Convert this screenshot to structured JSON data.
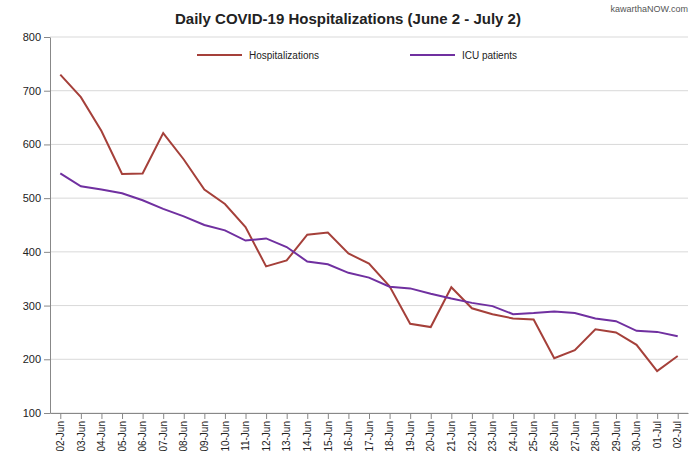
{
  "chart_data": {
    "type": "line",
    "title": "Daily COVID-19 Hospitalizations (June 2 - July 2)",
    "annotations": [
      "kawarthaNOW.com"
    ],
    "categories": [
      "02-Jun",
      "03-Jun",
      "04-Jun",
      "05-Jun",
      "06-Jun",
      "07-Jun",
      "08-Jun",
      "09-Jun",
      "10-Jun",
      "11-Jun",
      "12-Jun",
      "13-Jun",
      "14-Jun",
      "15-Jun",
      "16-Jun",
      "17-Jun",
      "18-Jun",
      "19-Jun",
      "20-Jun",
      "21-Jun",
      "22-Jun",
      "23-Jun",
      "24-Jun",
      "25-Jun",
      "26-Jun",
      "27-Jun",
      "28-Jun",
      "29-Jun",
      "30-Jun",
      "01-Jul",
      "02-Jul"
    ],
    "series": [
      {
        "name": "Hospitalizations",
        "color": "#a5403a",
        "values": [
          730,
          688,
          625,
          545,
          546,
          621,
          572,
          516,
          489,
          446,
          373,
          384,
          432,
          436,
          397,
          378,
          336,
          266,
          260,
          334,
          295,
          284,
          276,
          274,
          202,
          217,
          256,
          250,
          227,
          178,
          206
        ]
      },
      {
        "name": "ICU patients",
        "color": "#7030a0",
        "values": [
          546,
          522,
          516,
          509,
          496,
          480,
          466,
          450,
          440,
          421,
          425,
          409,
          382,
          377,
          361,
          352,
          335,
          332,
          322,
          313,
          305,
          299,
          284,
          286,
          289,
          286,
          276,
          271,
          253,
          251,
          243
        ]
      }
    ],
    "ylim": [
      100,
      800
    ],
    "yticks": [
      100,
      200,
      300,
      400,
      500,
      600,
      700,
      800
    ],
    "grid": true,
    "legend": "top"
  }
}
